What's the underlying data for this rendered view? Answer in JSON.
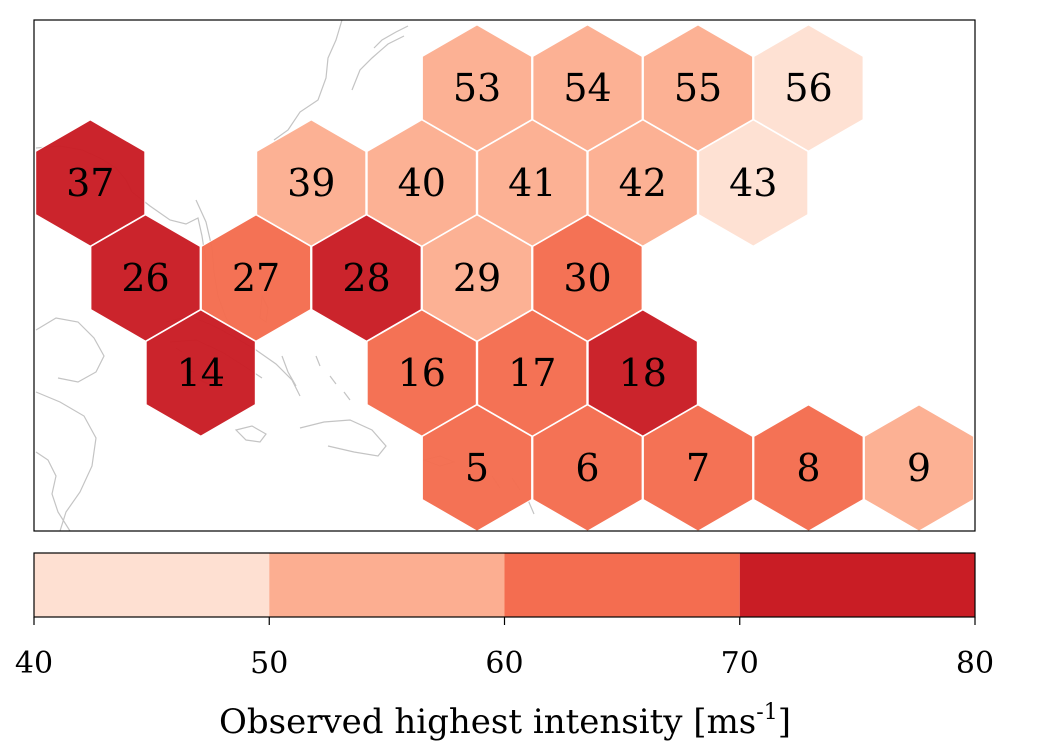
{
  "map": {
    "cells": [
      {
        "id": "5",
        "value": 65
      },
      {
        "id": "6",
        "value": 65
      },
      {
        "id": "7",
        "value": 65
      },
      {
        "id": "8",
        "value": 65
      },
      {
        "id": "9",
        "value": 55
      },
      {
        "id": "14",
        "value": 75
      },
      {
        "id": "16",
        "value": 65
      },
      {
        "id": "17",
        "value": 65
      },
      {
        "id": "18",
        "value": 75
      },
      {
        "id": "26",
        "value": 75
      },
      {
        "id": "27",
        "value": 65
      },
      {
        "id": "28",
        "value": 75
      },
      {
        "id": "29",
        "value": 55
      },
      {
        "id": "30",
        "value": 65
      },
      {
        "id": "37",
        "value": 75
      },
      {
        "id": "39",
        "value": 55
      },
      {
        "id": "40",
        "value": 55
      },
      {
        "id": "41",
        "value": 55
      },
      {
        "id": "42",
        "value": 55
      },
      {
        "id": "43",
        "value": 45
      },
      {
        "id": "53",
        "value": 55
      },
      {
        "id": "54",
        "value": 55
      },
      {
        "id": "55",
        "value": 55
      },
      {
        "id": "56",
        "value": 45
      }
    ]
  },
  "colorbar": {
    "title_main": "Observed highest intensity [ms",
    "title_sup": "-1",
    "title_close": "]",
    "ticks": [
      "40",
      "50",
      "60",
      "70",
      "80"
    ],
    "bins": [
      {
        "from": 40,
        "to": 50,
        "color": "#fee0d2"
      },
      {
        "from": 50,
        "to": 60,
        "color": "#fcae91"
      },
      {
        "from": 60,
        "to": 70,
        "color": "#f46d50"
      },
      {
        "from": 70,
        "to": 80,
        "color": "#c91d25"
      }
    ]
  }
}
